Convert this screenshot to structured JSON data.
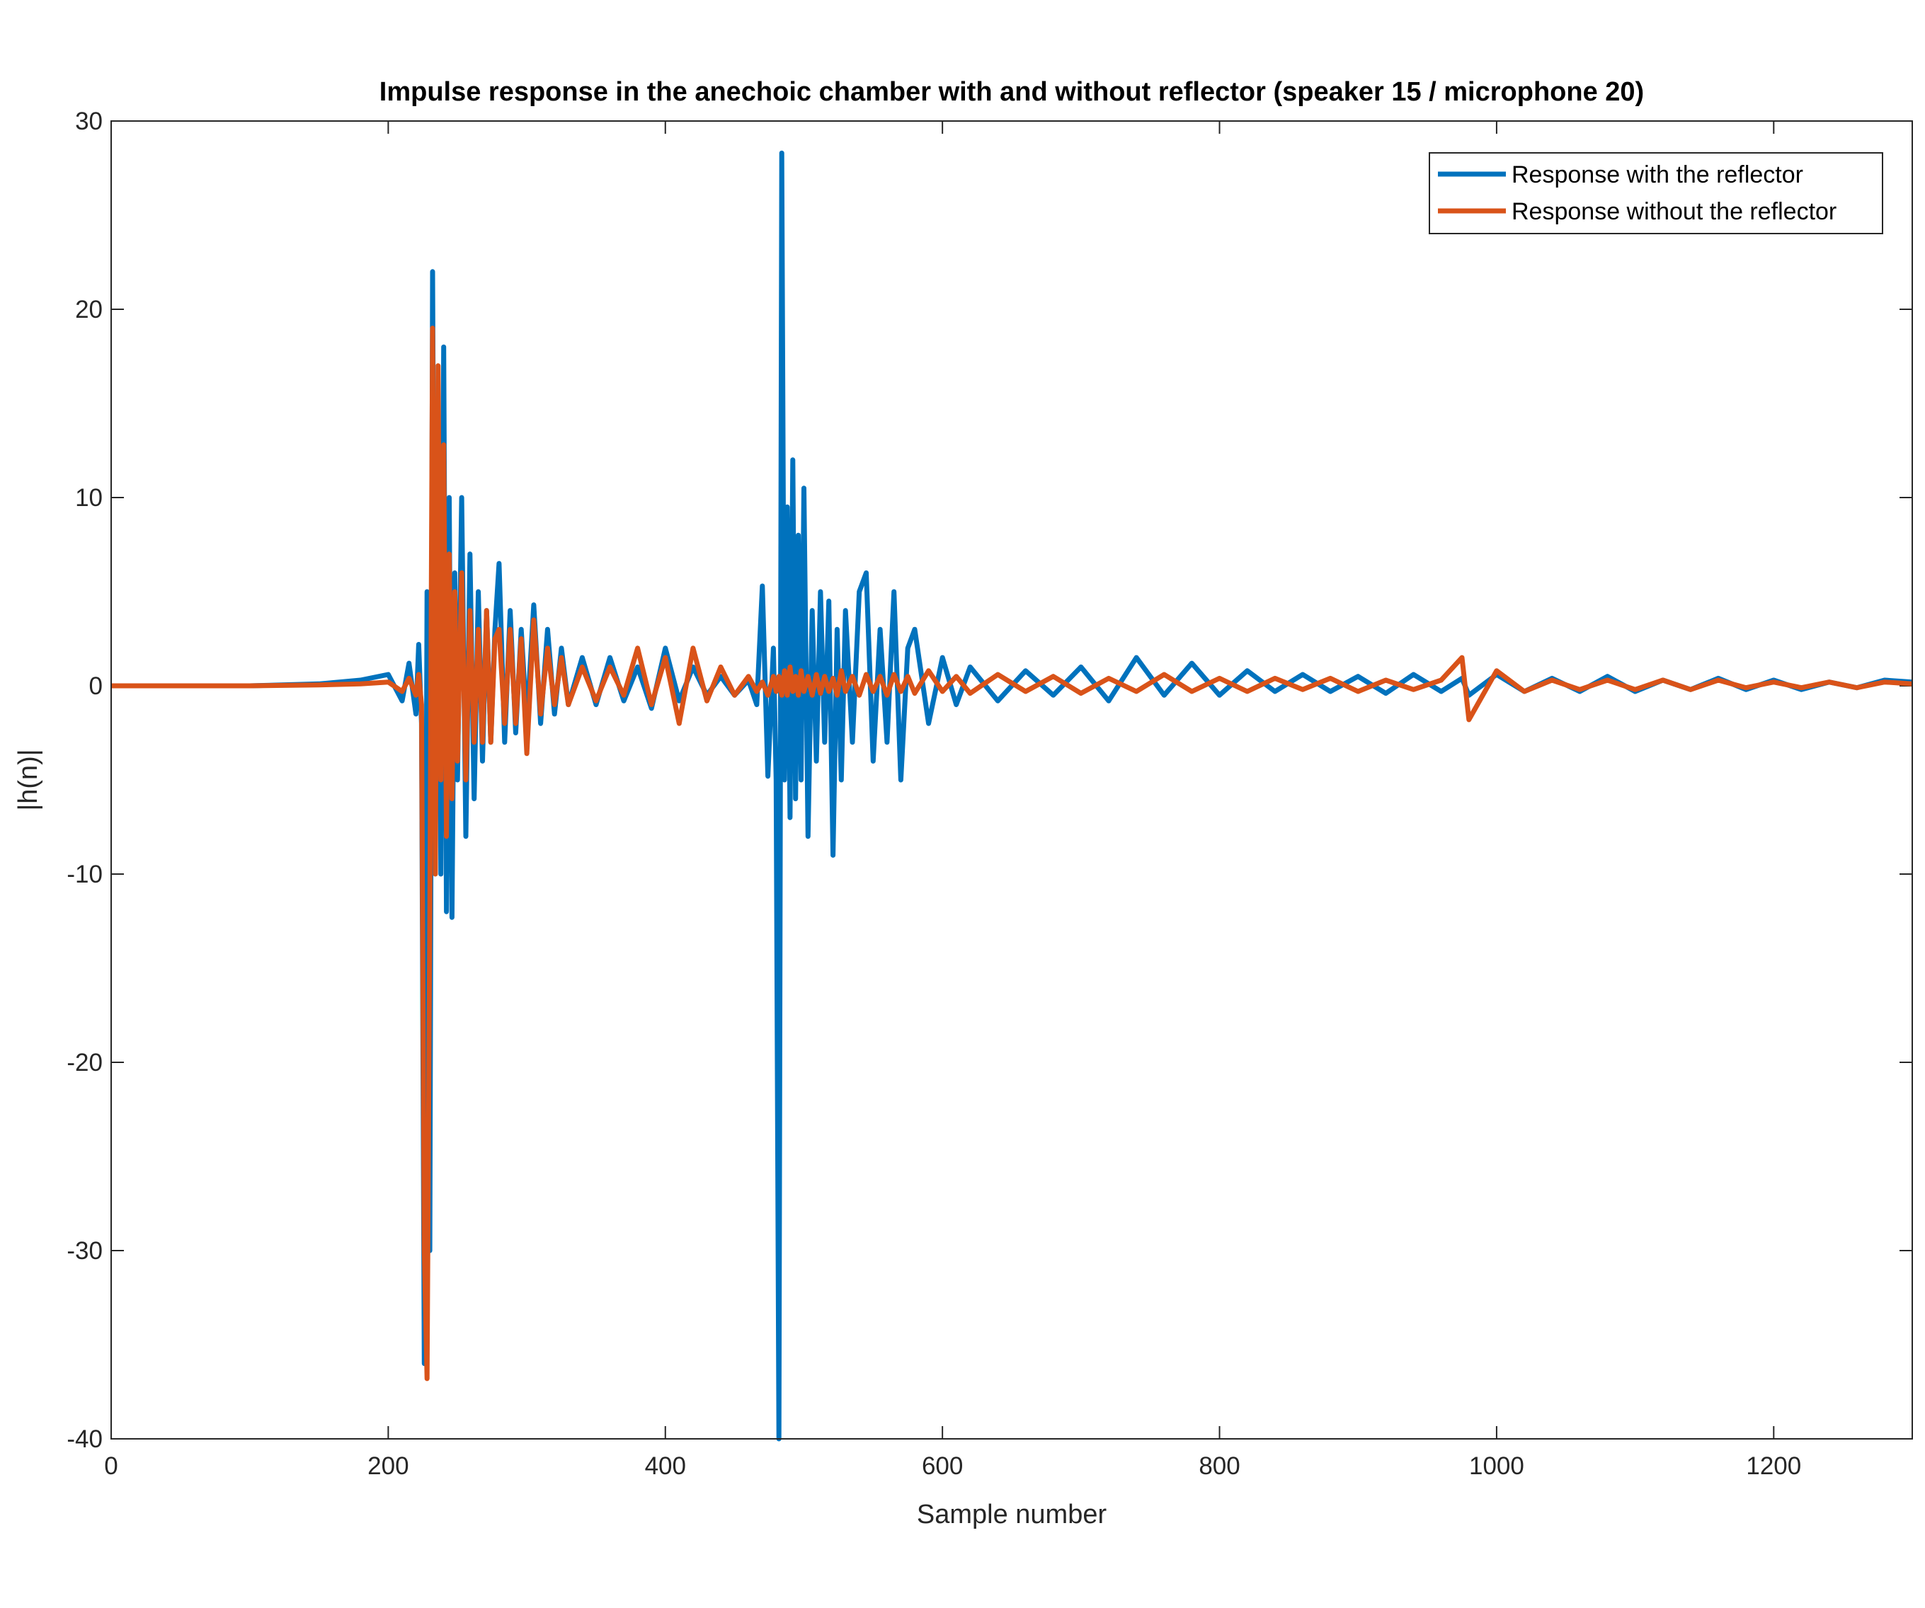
{
  "chart_data": {
    "type": "line",
    "title": "Impulse response in the anechoic chamber with and without reflector (speaker 15 / microphone 20)",
    "xlabel": "Sample number",
    "ylabel": "|h(n)|",
    "xlim": [
      0,
      1300
    ],
    "ylim": [
      -40,
      30
    ],
    "xticks": [
      0,
      200,
      400,
      600,
      800,
      1000,
      1200
    ],
    "yticks": [
      -40,
      -30,
      -20,
      -10,
      0,
      10,
      20,
      30
    ],
    "legend": "upper right",
    "grid": false,
    "x": [
      0,
      50,
      100,
      150,
      180,
      200,
      210,
      215,
      220,
      222,
      224,
      226,
      228,
      230,
      232,
      234,
      236,
      238,
      240,
      242,
      244,
      246,
      248,
      250,
      253,
      256,
      259,
      262,
      265,
      268,
      271,
      274,
      277,
      280,
      284,
      288,
      292,
      296,
      300,
      305,
      310,
      315,
      320,
      325,
      330,
      340,
      350,
      360,
      370,
      380,
      390,
      400,
      410,
      420,
      430,
      440,
      450,
      460,
      466,
      470,
      474,
      478,
      480,
      482,
      484,
      486,
      488,
      490,
      492,
      494,
      496,
      498,
      500,
      503,
      506,
      509,
      512,
      515,
      518,
      521,
      524,
      527,
      530,
      535,
      540,
      545,
      550,
      555,
      560,
      565,
      570,
      575,
      580,
      590,
      600,
      610,
      620,
      640,
      660,
      680,
      700,
      720,
      740,
      760,
      780,
      800,
      820,
      840,
      860,
      880,
      900,
      920,
      940,
      960,
      975,
      980,
      1000,
      1020,
      1040,
      1060,
      1080,
      1100,
      1120,
      1140,
      1160,
      1180,
      1200,
      1220,
      1240,
      1260,
      1280,
      1300
    ],
    "series": [
      {
        "name": "Response with the reflector",
        "color": "#0072bd",
        "values": [
          0,
          0,
          0,
          0.1,
          0.3,
          0.6,
          -0.8,
          1.2,
          -1.5,
          2.2,
          -2,
          -36,
          5,
          -30,
          22,
          -8,
          15,
          -10,
          18,
          -12,
          10,
          -12.3,
          6,
          -5,
          10,
          -8,
          7,
          -6,
          5,
          -4,
          4,
          -3,
          3,
          6.5,
          -3,
          4,
          -2.5,
          3,
          -2,
          4.3,
          -2,
          3,
          -1.5,
          2,
          -1,
          1.5,
          -1,
          1.5,
          -0.8,
          1,
          -1.2,
          2,
          -0.8,
          1,
          -0.5,
          0.5,
          -0.5,
          0.3,
          -1,
          5.3,
          -4.8,
          2,
          -5,
          -40,
          28.3,
          -5,
          9.5,
          -7,
          12,
          -6,
          8,
          -5,
          10.5,
          -8,
          4,
          -4,
          5,
          -3,
          4.5,
          -9,
          3,
          -5,
          4,
          -3,
          5,
          6,
          -4,
          3,
          -3,
          5,
          -5,
          2,
          3,
          -2,
          1.5,
          -1,
          1,
          -0.8,
          0.8,
          -0.5,
          1,
          -0.8,
          1.5,
          -0.5,
          1.2,
          -0.5,
          0.8,
          -0.3,
          0.6,
          -0.3,
          0.5,
          -0.4,
          0.6,
          -0.3,
          0.4,
          -0.5,
          0.6,
          -0.3,
          0.4,
          -0.3,
          0.5,
          -0.3,
          0.3,
          -0.2,
          0.4,
          -0.2,
          0.3,
          -0.2,
          0.2,
          -0.1,
          0.3,
          0.2
        ]
      },
      {
        "name": "Response without the reflector",
        "color": "#d95319",
        "values": [
          0,
          0,
          0,
          0.05,
          0.1,
          0.2,
          -0.3,
          0.4,
          -0.5,
          0.6,
          -1,
          -30,
          -36.8,
          -12,
          19,
          -10,
          17,
          -5,
          12.8,
          -8,
          7,
          -6,
          5,
          -4,
          6,
          -5,
          4,
          -3,
          3,
          -3,
          4,
          -3,
          2.5,
          3,
          -2,
          3,
          -2,
          2.5,
          -3.6,
          3.5,
          -1.5,
          2,
          -1,
          1.5,
          -1,
          1,
          -0.8,
          1,
          -0.5,
          2,
          -1,
          1.5,
          -2,
          2,
          -0.8,
          1,
          -0.5,
          0.5,
          -0.3,
          0.2,
          -0.5,
          0.5,
          -0.3,
          0.5,
          -0.5,
          0.8,
          -0.5,
          1,
          -0.3,
          0.5,
          -0.5,
          0.8,
          -0.3,
          0.5,
          -0.5,
          0.6,
          -0.4,
          0.5,
          -0.3,
          0.4,
          -0.5,
          0.8,
          -0.3,
          0.5,
          -0.5,
          0.6,
          -0.3,
          0.5,
          -0.5,
          0.6,
          -0.3,
          0.5,
          -0.4,
          0.8,
          -0.3,
          0.5,
          -0.4,
          0.6,
          -0.3,
          0.5,
          -0.4,
          0.4,
          -0.3,
          0.6,
          -0.3,
          0.4,
          -0.3,
          0.4,
          -0.2,
          0.4,
          -0.3,
          0.3,
          -0.2,
          0.3,
          1.5,
          -1.8,
          0.8,
          -0.3,
          0.3,
          -0.2,
          0.3,
          -0.2,
          0.3,
          -0.2,
          0.3,
          -0.1,
          0.2,
          -0.1,
          0.2,
          -0.1,
          0.2,
          0.1
        ]
      }
    ]
  }
}
